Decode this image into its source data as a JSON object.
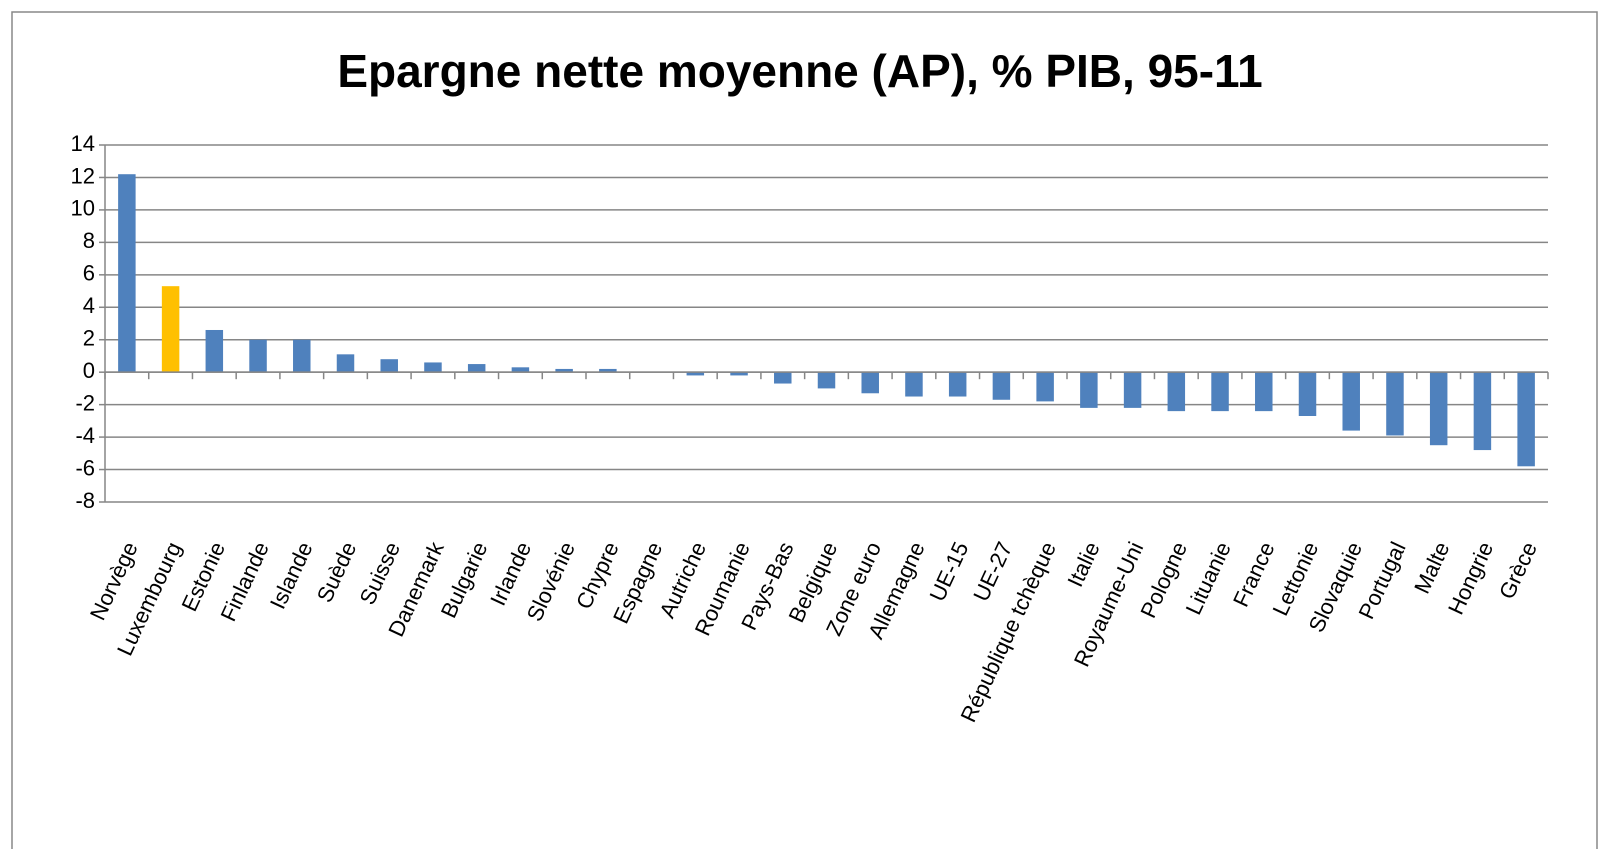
{
  "chart_data": {
    "type": "bar",
    "title": "Epargne nette moyenne (AP), % PIB, 95-11",
    "categories": [
      "Norvège",
      "Luxembourg",
      "Estonie",
      "Finlande",
      "Islande",
      "Suède",
      "Suisse",
      "Danemark",
      "Bulgarie",
      "Irlande",
      "Slovénie",
      "Chypre",
      "Espagne",
      "Autriche",
      "Roumanie",
      "Pays-Bas",
      "Belgique",
      "Zone euro",
      "Allemagne",
      "UE-15",
      "UE-27",
      "République tchèque",
      "Italie",
      "Royaume-Uni",
      "Pologne",
      "Lituanie",
      "France",
      "Lettonie",
      "Slovaquie",
      "Portugal",
      "Malte",
      "Hongrie",
      "Grèce"
    ],
    "values": [
      12.2,
      5.3,
      2.6,
      2.0,
      2.0,
      1.1,
      0.8,
      0.6,
      0.5,
      0.3,
      0.2,
      0.2,
      0,
      -0.2,
      -0.2,
      -0.7,
      -1.0,
      -1.3,
      -1.5,
      -1.5,
      -1.7,
      -1.8,
      -2.2,
      -2.2,
      -2.4,
      -2.4,
      -2.4,
      -2.7,
      -3.6,
      -3.9,
      -4.5,
      -4.8,
      -5.8
    ],
    "colors": [
      "#4f81bd",
      "#ffc000",
      "#4f81bd",
      "#4f81bd",
      "#4f81bd",
      "#4f81bd",
      "#4f81bd",
      "#4f81bd",
      "#4f81bd",
      "#4f81bd",
      "#4f81bd",
      "#4f81bd",
      "#4f81bd",
      "#4f81bd",
      "#4f81bd",
      "#4f81bd",
      "#4f81bd",
      "#4f81bd",
      "#4f81bd",
      "#4f81bd",
      "#4f81bd",
      "#4f81bd",
      "#4f81bd",
      "#4f81bd",
      "#4f81bd",
      "#4f81bd",
      "#4f81bd",
      "#4f81bd",
      "#4f81bd",
      "#4f81bd",
      "#4f81bd",
      "#4f81bd",
      "#4f81bd"
    ],
    "ylim": [
      -8,
      14
    ],
    "yticks": [
      -8,
      -6,
      -4,
      -2,
      0,
      2,
      4,
      6,
      8,
      10,
      12,
      14
    ],
    "grid": true
  }
}
